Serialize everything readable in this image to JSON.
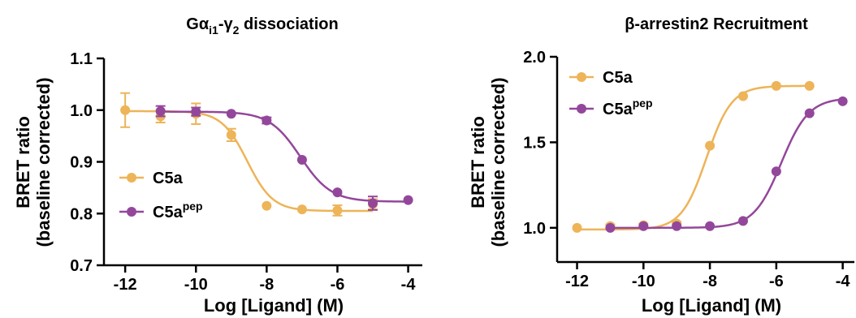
{
  "chart_data": [
    {
      "type": "line",
      "title": {
        "main": "Gα",
        "sub1": "i1",
        "mid": "-γ",
        "sub2": "2",
        "rest": " dissociation"
      },
      "xlabel": "Log [Ligand] (M)",
      "ylabel_line1": "BRET ratio",
      "ylabel_line2": "(baseline corrected)",
      "xlim": [
        -12.6,
        -3.6
      ],
      "ylim": [
        0.7,
        1.1
      ],
      "xticks": [
        -12,
        -10,
        -8,
        -6,
        -4
      ],
      "xtick_labels": [
        "-12",
        "-10",
        "-8",
        "-6",
        "-4"
      ],
      "yticks": [
        0.7,
        0.8,
        0.9,
        1.0,
        1.1
      ],
      "ytick_labels": [
        "0.7",
        "0.8",
        "0.9",
        "1.0",
        "1.1"
      ],
      "legend_position": "lower-left",
      "series": [
        {
          "name": "C5a",
          "name_sup": "",
          "color": "#EDB458",
          "x": [
            -12,
            -11,
            -10,
            -9,
            -8,
            -7,
            -6,
            -5
          ],
          "y": [
            1.0,
            0.988,
            0.993,
            0.952,
            0.815,
            0.808,
            0.806,
            0.818
          ],
          "err": [
            0.033,
            0.012,
            0.02,
            0.012,
            0.0,
            0.0,
            0.01,
            0.01
          ],
          "fit": {
            "top": 0.998,
            "bottom": 0.805,
            "logEC50": -8.55,
            "hill": 1.2
          }
        },
        {
          "name": "C5a",
          "name_sup": "pep",
          "color": "#93479B",
          "x": [
            -11,
            -10,
            -9,
            -8,
            -7,
            -6,
            -5,
            -4
          ],
          "y": [
            0.998,
            0.997,
            0.993,
            0.98,
            0.904,
            0.841,
            0.82,
            0.826
          ],
          "err": [
            0.01,
            0.008,
            0.0,
            0.006,
            0.0,
            0.0,
            0.013,
            0.0
          ],
          "fit": {
            "top": 0.997,
            "bottom": 0.823,
            "logEC50": -7.05,
            "hill": 1.0
          }
        }
      ]
    },
    {
      "type": "line",
      "title": {
        "main": "β-arrestin2 Recruitment"
      },
      "xlabel": "Log [Ligand] (M)",
      "ylabel_line1": "BRET ratio",
      "ylabel_line2": "(baseline corrected)",
      "xlim": [
        -12.6,
        -3.6
      ],
      "ylim": [
        0.8,
        2.0
      ],
      "xticks": [
        -12,
        -10,
        -8,
        -6,
        -4
      ],
      "xtick_labels": [
        "-12",
        "-10",
        "-8",
        "-6",
        "-4"
      ],
      "yticks": [
        1.0,
        1.5,
        2.0
      ],
      "ytick_labels": [
        "1.0",
        "1.5",
        "2.0"
      ],
      "legend_position": "top-left",
      "series": [
        {
          "name": "C5a",
          "name_sup": "",
          "color": "#EDB458",
          "x": [
            -12,
            -11,
            -10,
            -9,
            -8,
            -7,
            -6,
            -5
          ],
          "y": [
            1.0,
            1.01,
            1.015,
            1.025,
            1.48,
            1.77,
            1.83,
            1.83
          ],
          "err": [
            0.0,
            0.01,
            0.01,
            0.01,
            0.0,
            0.0,
            0.0,
            0.0
          ],
          "fit": {
            "top": 1.83,
            "bottom": 0.99,
            "logEC50": -8.1,
            "hill": 1.15
          }
        },
        {
          "name": "C5a",
          "name_sup": "pep",
          "color": "#93479B",
          "x": [
            -11,
            -10,
            -9,
            -8,
            -7,
            -6,
            -5,
            -4
          ],
          "y": [
            1.0,
            1.01,
            1.01,
            1.01,
            1.04,
            1.33,
            1.67,
            1.74
          ],
          "err": [
            0.0,
            0.0,
            0.0,
            0.0,
            0.0,
            0.0,
            0.0,
            0.0
          ],
          "fit": {
            "top": 1.76,
            "bottom": 1.0,
            "logEC50": -5.85,
            "hill": 1.05
          }
        }
      ]
    }
  ]
}
